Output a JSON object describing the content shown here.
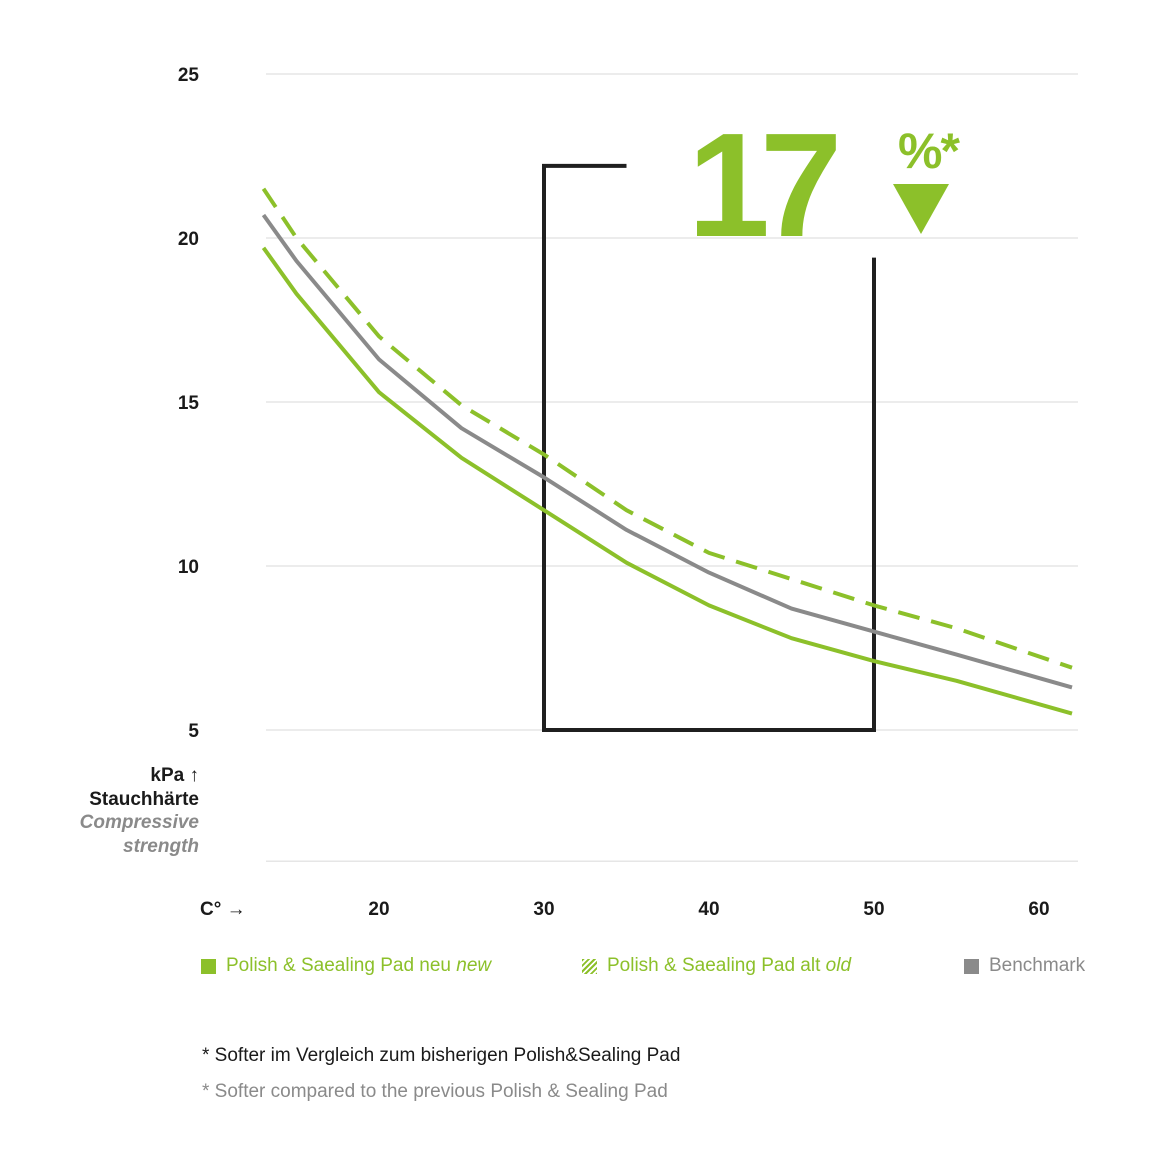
{
  "chart_data": {
    "type": "line",
    "xlabel": "C°",
    "ylabel": {
      "unit": "kPa",
      "de": "Stauchhärte",
      "en_line1": "Compressive",
      "en_line2": "strength"
    },
    "xlim": [
      10,
      62
    ],
    "ylim": [
      1,
      25
    ],
    "x_ticks": [
      20,
      30,
      40,
      50,
      60
    ],
    "y_ticks": [
      5,
      10,
      15,
      20,
      25
    ],
    "grid": true,
    "series": [
      {
        "name": "Polish & Saealing Pad alt old",
        "color": "#8cc02a",
        "dashed": true,
        "x": [
          13,
          15,
          20,
          25,
          30,
          35,
          40,
          45,
          50,
          55,
          62
        ],
        "y": [
          21.5,
          20.0,
          17.0,
          14.9,
          13.4,
          11.7,
          10.4,
          9.6,
          8.8,
          8.1,
          6.9
        ]
      },
      {
        "name": "Benchmark",
        "color": "#8a8a8a",
        "dashed": false,
        "x": [
          13,
          15,
          20,
          25,
          30,
          35,
          40,
          45,
          50,
          55,
          62
        ],
        "y": [
          20.7,
          19.3,
          16.3,
          14.2,
          12.7,
          11.1,
          9.8,
          8.7,
          8.0,
          7.3,
          6.3
        ]
      },
      {
        "name": "Polish & Saealing Pad neu new",
        "color": "#8cc02a",
        "dashed": false,
        "x": [
          13,
          15,
          20,
          25,
          30,
          35,
          40,
          45,
          50,
          55,
          62
        ],
        "y": [
          19.7,
          18.3,
          15.3,
          13.3,
          11.7,
          10.1,
          8.8,
          7.8,
          7.1,
          6.5,
          5.5
        ]
      }
    ],
    "highlight_box": {
      "x": [
        30,
        50
      ],
      "y_bottom": 5,
      "y_top_left": 22.2,
      "y_top_right": 19.4,
      "top_left_end_x": 35
    },
    "annotation": {
      "value": "17",
      "suffix": "%*",
      "direction": "down",
      "color": "#8cc02a"
    }
  },
  "legend": [
    {
      "name": "Polish & Saealing Pad neu",
      "italic": "new",
      "style": "solid"
    },
    {
      "name": "Polish & Saealing Pad alt",
      "italic": "old",
      "style": "hatched"
    },
    {
      "name": "Benchmark",
      "italic": "",
      "style": "grey"
    }
  ],
  "footnotes": {
    "de": "* Softer im Vergleich zum bisherigen Polish&Sealing Pad",
    "en": "* Softer compared to the previous Polish & Sealing Pad"
  },
  "x_unit_arrow": "→",
  "y_unit_arrow": "↑"
}
